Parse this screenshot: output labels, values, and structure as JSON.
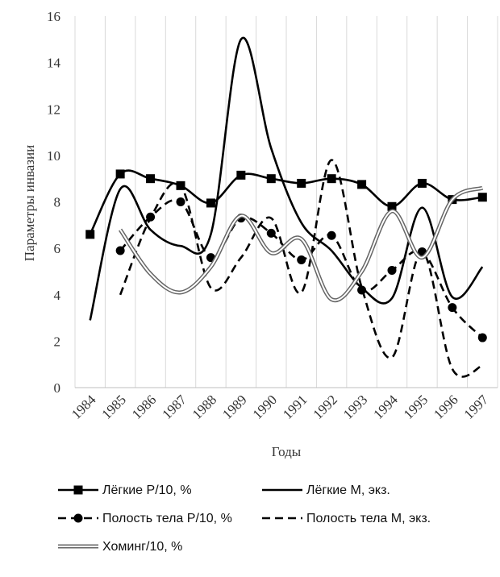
{
  "chart_data": {
    "type": "line",
    "title": "",
    "xlabel": "Годы",
    "ylabel": "Параметры  инвазии",
    "ylim": [
      0,
      16
    ],
    "yticks": [
      0,
      2,
      4,
      6,
      8,
      10,
      12,
      14,
      16
    ],
    "categories": [
      "1984",
      "1985",
      "1986",
      "1987",
      "1988",
      "1989",
      "1990",
      "1991",
      "1992",
      "1993",
      "1994",
      "1995",
      "1996",
      "1997"
    ],
    "grid": "vertical",
    "legend_position": "bottom",
    "series": [
      {
        "name": "Лёгкие  Р/10, %",
        "style": "solid-square",
        "color": "#000000",
        "values": [
          6.6,
          9.2,
          9.0,
          8.7,
          7.95,
          9.15,
          9.0,
          8.8,
          9.0,
          8.75,
          7.8,
          8.8,
          8.1,
          8.2
        ]
      },
      {
        "name": "Лёгкие  М, экз.",
        "style": "solid",
        "color": "#000000",
        "values": [
          2.9,
          8.55,
          6.8,
          6.1,
          6.6,
          15.0,
          10.3,
          7.1,
          5.9,
          4.3,
          3.85,
          7.75,
          3.9,
          5.2
        ]
      },
      {
        "name": "Полость тела Р/10, %",
        "style": "dashed-circle",
        "color": "#000000",
        "values": [
          null,
          5.9,
          7.35,
          8.0,
          5.6,
          7.3,
          6.65,
          5.5,
          6.55,
          4.2,
          5.05,
          5.85,
          3.45,
          2.15
        ]
      },
      {
        "name": "Полость тела М, экз.",
        "style": "dashed",
        "color": "#000000",
        "values": [
          null,
          4.0,
          7.3,
          8.7,
          4.3,
          5.6,
          7.3,
          4.1,
          9.8,
          4.3,
          1.3,
          5.85,
          0.8,
          0.95
        ]
      },
      {
        "name": "Хоминг/10, %",
        "style": "double",
        "color": "#666666",
        "values": [
          null,
          6.8,
          4.9,
          4.1,
          5.2,
          7.4,
          5.8,
          6.4,
          3.8,
          5.0,
          7.6,
          5.6,
          8.1,
          8.6
        ]
      }
    ]
  }
}
